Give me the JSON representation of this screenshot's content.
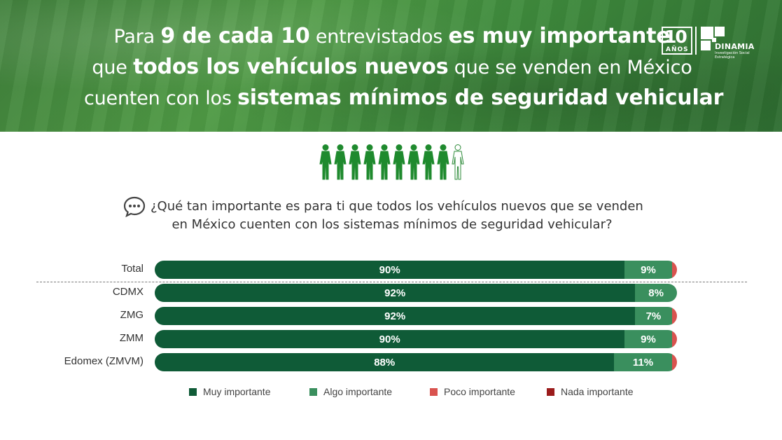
{
  "header": {
    "line1": [
      {
        "t": "Para ",
        "b": false
      },
      {
        "t": "9 de cada 10",
        "b": true
      },
      {
        "t": " entrevistados ",
        "b": false
      },
      {
        "t": "es muy importante",
        "b": true
      }
    ],
    "line2": [
      {
        "t": "que ",
        "b": false
      },
      {
        "t": "todos los vehículos nuevos",
        "b": true
      },
      {
        "t": " que se venden en México",
        "b": false
      }
    ],
    "line3": [
      {
        "t": "cuenten con los ",
        "b": false
      },
      {
        "t": "sistemas mínimos de seguridad vehicular",
        "b": true
      }
    ]
  },
  "logo": {
    "years_num": "10",
    "years_txt": "AÑOS",
    "brand": "DINAMIA",
    "tagline": "Investigación Social Estratégica"
  },
  "people": {
    "filled": 9,
    "total": 10,
    "fill_color": "#1f8a2e"
  },
  "question": {
    "line1": "¿Qué tan importante es para ti que todos los vehículos nuevos que se venden",
    "line2": "en México cuenten con los sistemas mínimos de seguridad vehicular?"
  },
  "chart_data": {
    "type": "bar",
    "orientation": "horizontal-stacked-100",
    "categories": [
      "Total",
      "CDMX",
      "ZMG",
      "ZMM",
      "Edomex (ZMVM)"
    ],
    "series": [
      {
        "name": "Muy importante",
        "color": "#0f5b37",
        "values": [
          90,
          92,
          92,
          90,
          88
        ],
        "labels": [
          "90%",
          "92%",
          "92%",
          "90%",
          "88%"
        ]
      },
      {
        "name": "Algo importante",
        "color": "#3a8f5e",
        "values": [
          9,
          8,
          7,
          9,
          11
        ],
        "labels": [
          "9%",
          "8%",
          "7%",
          "9%",
          "11%"
        ]
      },
      {
        "name": "Poco importante",
        "color": "#d9534f",
        "values": [
          1,
          0,
          1,
          1,
          1
        ],
        "labels": [
          "",
          "",
          "",
          "",
          ""
        ]
      },
      {
        "name": "Nada importante",
        "color": "#9b1c1c",
        "values": [
          0,
          0,
          0,
          0,
          0
        ],
        "labels": [
          "",
          "",
          "",
          "",
          ""
        ]
      }
    ],
    "xlim": [
      0,
      100
    ],
    "legend_position": "bottom",
    "grid": false
  }
}
